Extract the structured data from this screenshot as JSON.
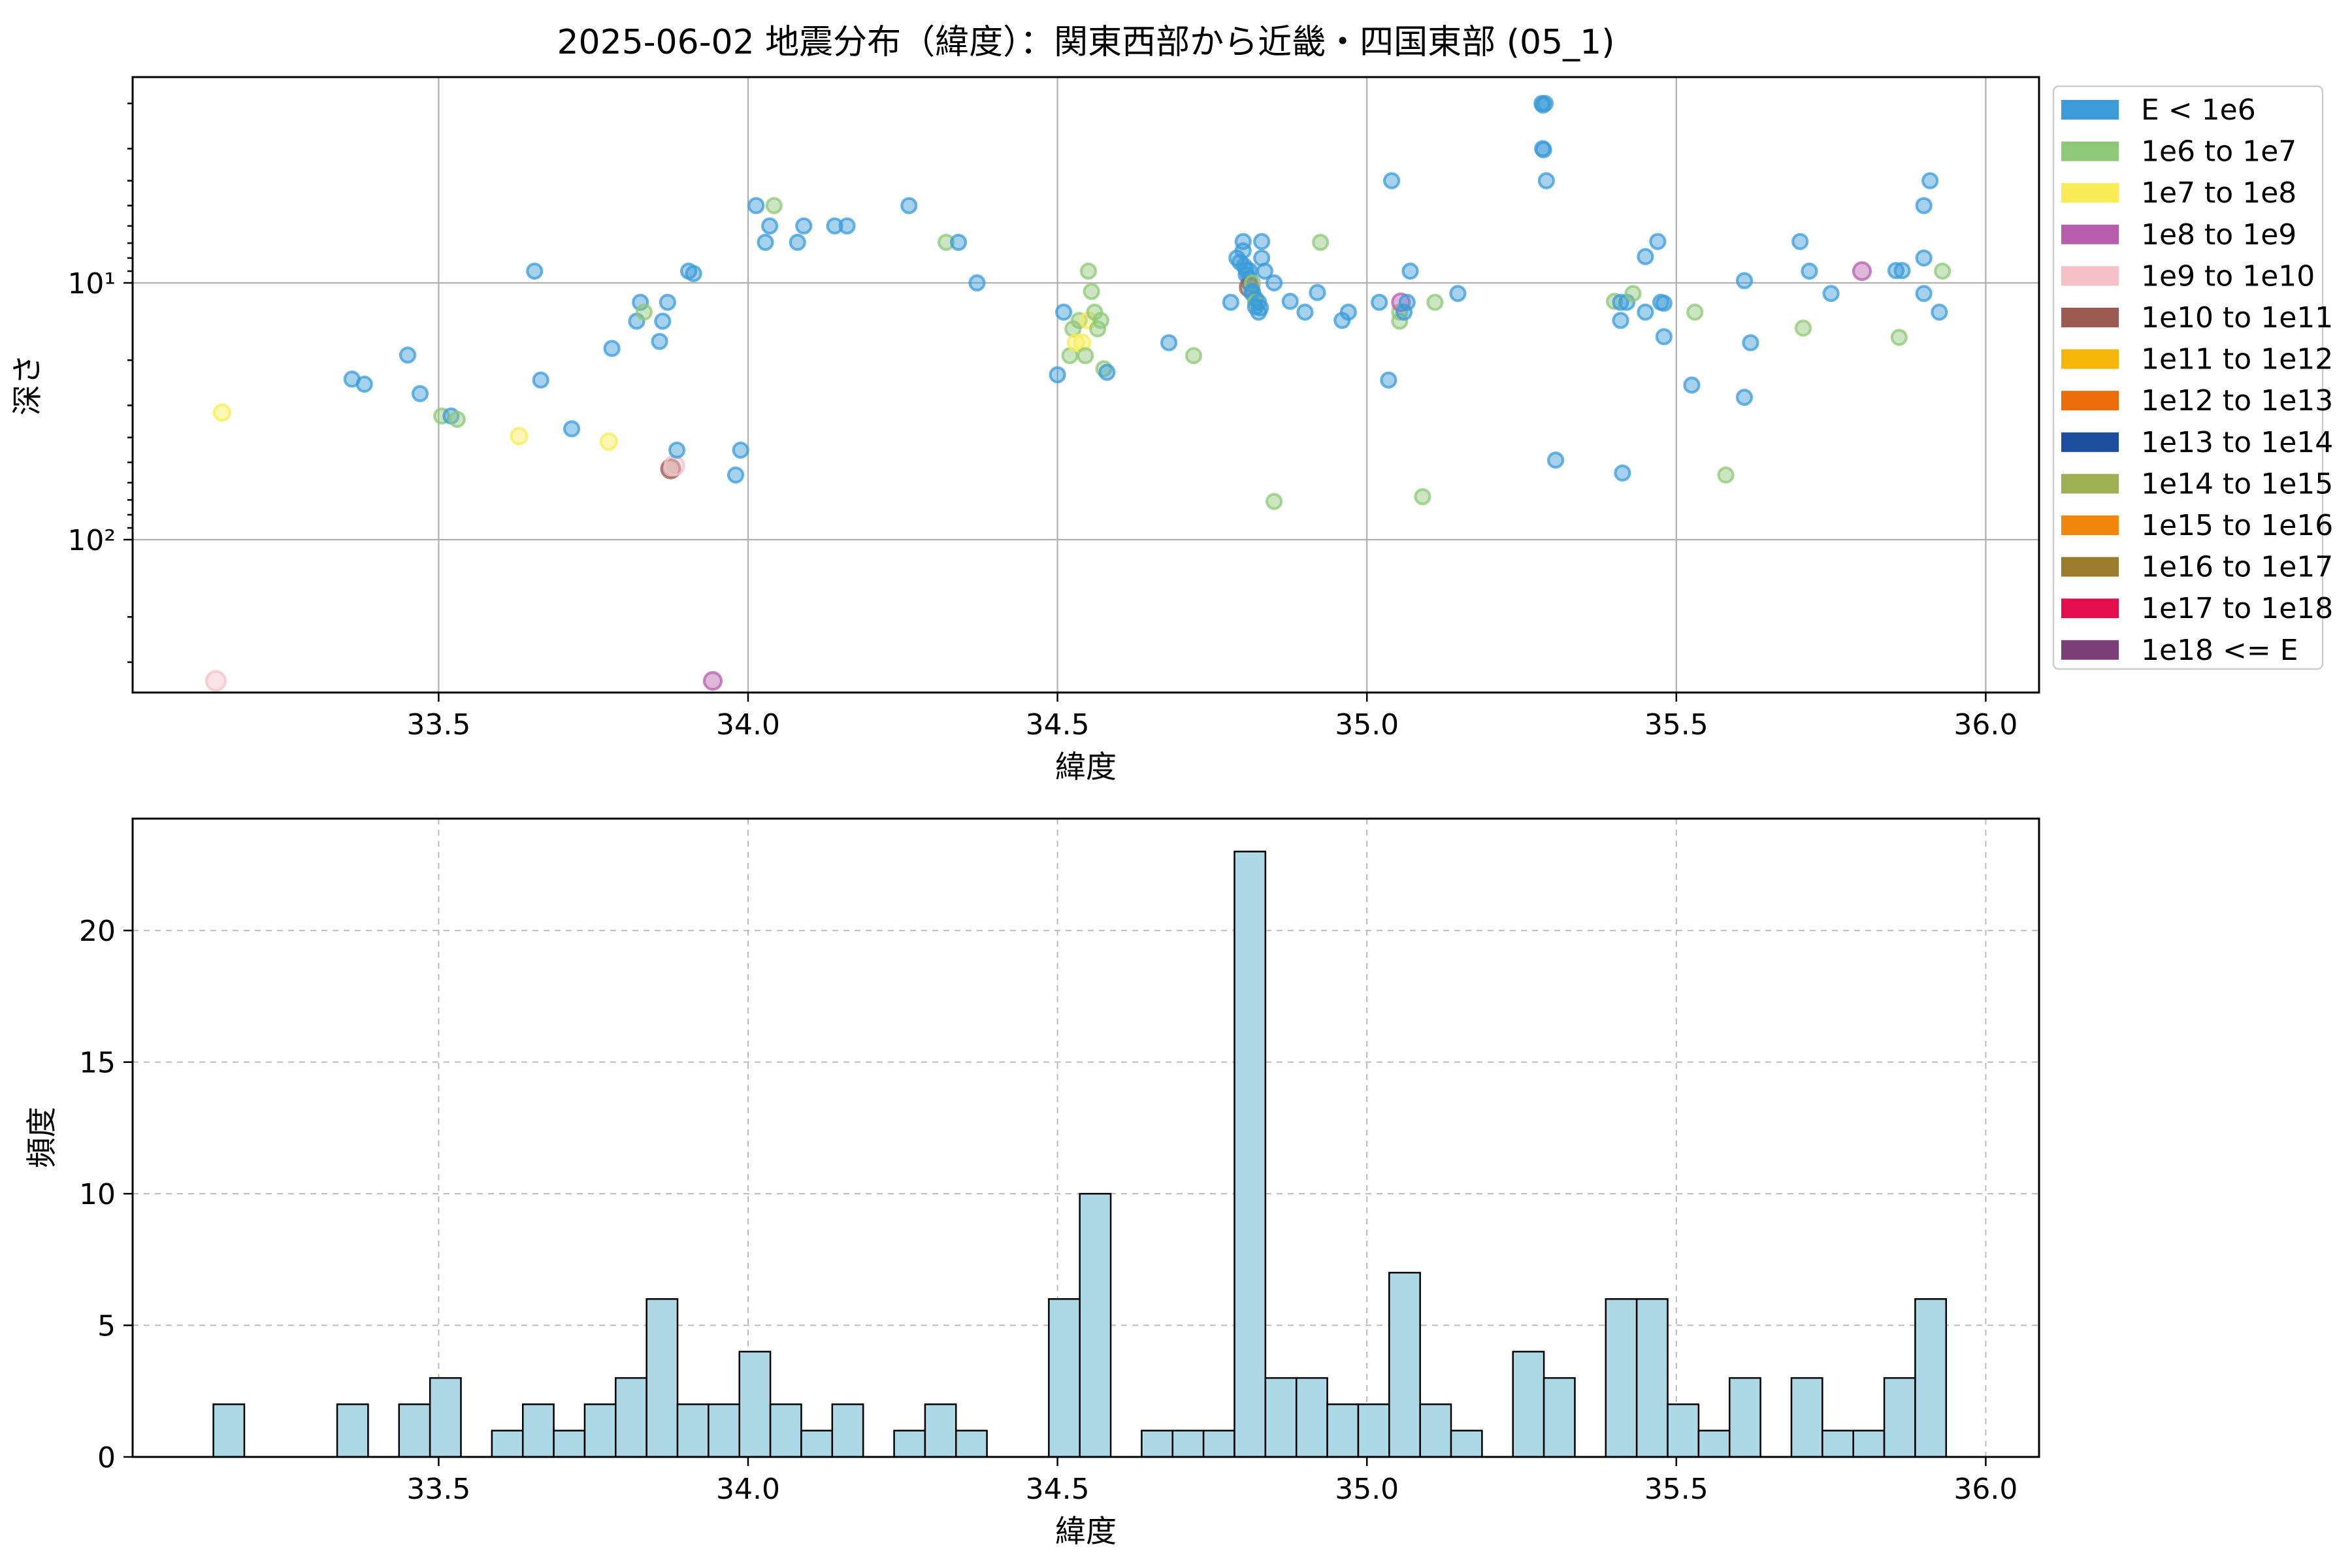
{
  "title": "2025-06-02 地震分布（緯度）：関東西部から近畿・四国東部 (05_1)",
  "legend": {
    "entries": [
      {
        "label": "E < 1e6",
        "color": "#3B9CD9"
      },
      {
        "label": "1e6 to 1e7",
        "color": "#8FC878"
      },
      {
        "label": "1e7 to 1e8",
        "color": "#F8ED56"
      },
      {
        "label": "1e8 to 1e9",
        "color": "#B75FAC"
      },
      {
        "label": "1e9 to 1e10",
        "color": "#F4C2C6"
      },
      {
        "label": "1e10 to 1e11",
        "color": "#9C5B52"
      },
      {
        "label": "1e11 to 1e12",
        "color": "#F4B609"
      },
      {
        "label": "1e12 to 1e13",
        "color": "#EA6D0A"
      },
      {
        "label": "1e13 to 1e14",
        "color": "#1C4E9D"
      },
      {
        "label": "1e14 to 1e15",
        "color": "#9FB054"
      },
      {
        "label": "1e15 to 1e16",
        "color": "#F0870A"
      },
      {
        "label": "1e16 to 1e17",
        "color": "#9B7C2C"
      },
      {
        "label": "1e17 to 1e18",
        "color": "#E20D4B"
      },
      {
        "label": "1e18 <= E",
        "color": "#7C3F77"
      }
    ]
  },
  "chart_data": [
    {
      "type": "scatter",
      "xlabel": "緯度",
      "ylabel": "深さ",
      "x_ticks": [
        "33.5",
        "34.0",
        "34.5",
        "35.0",
        "35.5",
        "36.0"
      ],
      "x_tick_values": [
        33.5,
        34.0,
        34.5,
        35.0,
        35.5,
        36.0
      ],
      "y_ticks": [
        {
          "label": "10¹",
          "value": 10
        },
        {
          "label": "10²",
          "value": 100
        }
      ],
      "y_scale": "log-inverted-depth",
      "xlim": [
        33.005,
        36.086
      ],
      "depth_lim": [
        1.58,
        394
      ],
      "grid": true,
      "marker_alpha": 0.6,
      "point_format": "[latitude, depth_km, energy_class_index]",
      "points": [
        [
          33.15,
          32,
          2
        ],
        [
          33.14,
          355,
          4
        ],
        [
          33.36,
          23.7,
          0
        ],
        [
          33.38,
          24.8,
          0
        ],
        [
          33.45,
          19.1,
          0
        ],
        [
          33.47,
          27,
          0
        ],
        [
          33.505,
          33,
          1
        ],
        [
          33.52,
          33,
          0
        ],
        [
          33.53,
          34,
          1
        ],
        [
          33.63,
          39.5,
          2
        ],
        [
          33.655,
          9.0,
          0
        ],
        [
          33.665,
          23.9,
          0
        ],
        [
          33.715,
          37,
          0
        ],
        [
          33.775,
          41.5,
          2
        ],
        [
          33.78,
          18,
          0
        ],
        [
          33.82,
          14.1,
          0
        ],
        [
          33.826,
          11.9,
          0
        ],
        [
          33.832,
          13,
          1
        ],
        [
          33.857,
          16.9,
          0
        ],
        [
          33.862,
          14.1,
          0
        ],
        [
          33.87,
          11.9,
          0
        ],
        [
          33.875,
          53,
          5
        ],
        [
          33.881,
          51.5,
          4
        ],
        [
          33.885,
          44.8,
          0
        ],
        [
          33.904,
          9.0,
          0
        ],
        [
          33.912,
          9.2,
          0
        ],
        [
          33.943,
          355,
          3
        ],
        [
          33.98,
          56,
          0
        ],
        [
          33.988,
          44.8,
          0
        ],
        [
          34.013,
          5.0,
          0
        ],
        [
          34.028,
          6.95,
          0
        ],
        [
          34.035,
          6.0,
          0
        ],
        [
          34.042,
          5.0,
          1
        ],
        [
          34.08,
          6.95,
          0
        ],
        [
          34.09,
          6.0,
          0
        ],
        [
          34.14,
          6.0,
          0
        ],
        [
          34.16,
          6.0,
          0
        ],
        [
          34.26,
          5.0,
          0
        ],
        [
          34.32,
          6.95,
          1
        ],
        [
          34.34,
          6.95,
          0
        ],
        [
          34.37,
          10.0,
          0
        ],
        [
          34.5,
          22.8,
          0
        ],
        [
          34.51,
          13.0,
          0
        ],
        [
          34.52,
          19.2,
          1
        ],
        [
          34.525,
          15.1,
          1
        ],
        [
          34.53,
          17.1,
          2
        ],
        [
          34.535,
          14.0,
          1
        ],
        [
          34.54,
          17.1,
          2
        ],
        [
          34.545,
          19.2,
          1
        ],
        [
          34.55,
          14.0,
          2
        ],
        [
          34.55,
          9.0,
          1
        ],
        [
          34.555,
          10.8,
          1
        ],
        [
          34.56,
          13.0,
          1
        ],
        [
          34.565,
          15.1,
          1
        ],
        [
          34.57,
          14.0,
          1
        ],
        [
          34.575,
          21.6,
          1
        ],
        [
          34.58,
          22.3,
          0
        ],
        [
          34.68,
          17.1,
          0
        ],
        [
          34.72,
          19.2,
          1
        ],
        [
          34.78,
          11.9,
          0
        ],
        [
          34.79,
          8.0,
          0
        ],
        [
          34.795,
          8.3,
          0
        ],
        [
          34.8,
          6.9,
          0
        ],
        [
          34.8,
          7.5,
          0
        ],
        [
          34.802,
          8.6,
          0
        ],
        [
          34.805,
          8.9,
          0
        ],
        [
          34.805,
          9.3,
          0
        ],
        [
          34.81,
          8.95,
          0
        ],
        [
          34.81,
          9.6,
          0
        ],
        [
          34.81,
          10.0,
          0
        ],
        [
          34.81,
          10.4,
          5
        ],
        [
          34.815,
          10.0,
          1
        ],
        [
          34.815,
          10.8,
          0
        ],
        [
          34.815,
          11.0,
          0
        ],
        [
          34.82,
          11.5,
          0
        ],
        [
          34.82,
          11.9,
          1
        ],
        [
          34.82,
          12.4,
          0
        ],
        [
          34.825,
          11.9,
          0
        ],
        [
          34.825,
          13.0,
          0
        ],
        [
          34.828,
          12.5,
          0
        ],
        [
          34.83,
          8.0,
          0
        ],
        [
          34.83,
          6.9,
          0
        ],
        [
          34.835,
          9.0,
          0
        ],
        [
          34.85,
          10.0,
          0
        ],
        [
          34.876,
          11.8,
          0
        ],
        [
          34.85,
          71,
          1
        ],
        [
          34.9,
          13.0,
          0
        ],
        [
          34.92,
          10.9,
          0
        ],
        [
          34.925,
          6.95,
          1
        ],
        [
          34.96,
          14.0,
          0
        ],
        [
          34.97,
          13.0,
          0
        ],
        [
          35.02,
          11.9,
          0
        ],
        [
          35.035,
          23.9,
          0
        ],
        [
          35.04,
          4.0,
          0
        ],
        [
          35.053,
          13.0,
          1
        ],
        [
          35.053,
          14.1,
          1
        ],
        [
          35.055,
          11.9,
          3
        ],
        [
          35.06,
          13.0,
          0
        ],
        [
          35.065,
          11.9,
          0
        ],
        [
          35.07,
          9.0,
          0
        ],
        [
          35.11,
          11.9,
          1
        ],
        [
          35.09,
          68,
          1
        ],
        [
          35.147,
          11.0,
          0
        ],
        [
          35.283,
          2.0,
          0
        ],
        [
          35.2845,
          2.03,
          0
        ],
        [
          35.284,
          3.0,
          0
        ],
        [
          35.2855,
          3.03,
          0
        ],
        [
          35.288,
          2.0,
          0
        ],
        [
          35.29,
          4.0,
          0
        ],
        [
          35.305,
          49,
          0
        ],
        [
          35.4,
          11.8,
          1
        ],
        [
          35.41,
          11.9,
          0
        ],
        [
          35.42,
          11.9,
          0
        ],
        [
          35.43,
          11.0,
          1
        ],
        [
          35.41,
          14.0,
          0
        ],
        [
          35.413,
          55,
          0
        ],
        [
          35.45,
          13.0,
          0
        ],
        [
          35.475,
          11.9,
          0
        ],
        [
          35.48,
          12.0,
          0
        ],
        [
          35.47,
          6.9,
          0
        ],
        [
          35.45,
          7.9,
          0
        ],
        [
          35.48,
          16.2,
          0
        ],
        [
          35.53,
          13.0,
          1
        ],
        [
          35.525,
          25.0,
          0
        ],
        [
          35.58,
          56,
          1
        ],
        [
          35.61,
          9.8,
          0
        ],
        [
          35.62,
          17.1,
          0
        ],
        [
          35.61,
          27.9,
          0
        ],
        [
          35.7,
          6.9,
          0
        ],
        [
          35.715,
          9.0,
          0
        ],
        [
          35.705,
          15.0,
          1
        ],
        [
          35.75,
          11.0,
          0
        ],
        [
          35.8,
          9.0,
          3
        ],
        [
          35.855,
          8.95,
          0
        ],
        [
          35.865,
          8.95,
          0
        ],
        [
          35.86,
          16.3,
          1
        ],
        [
          35.91,
          4.0,
          0
        ],
        [
          35.9,
          5.0,
          0
        ],
        [
          35.9,
          8.0,
          0
        ],
        [
          35.9,
          11.0,
          0
        ],
        [
          35.93,
          9.0,
          1
        ],
        [
          35.925,
          13,
          0
        ]
      ]
    },
    {
      "type": "bar",
      "xlabel": "緯度",
      "ylabel": "頻度",
      "x_ticks": [
        "33.5",
        "34.0",
        "34.5",
        "35.0",
        "35.5",
        "36.0"
      ],
      "x_tick_values": [
        33.5,
        34.0,
        34.5,
        35.0,
        35.5,
        36.0
      ],
      "y_ticks": [
        0,
        5,
        10,
        15,
        20
      ],
      "ylim": [
        0,
        24.25
      ],
      "xlim": [
        33.005,
        36.086
      ],
      "grid": "dashed",
      "bin_start": 33.136,
      "bin_width": 0.05,
      "bar_color": "#ADD8E6",
      "bar_edge_color": "#000000",
      "counts": [
        2,
        0,
        0,
        0,
        2,
        0,
        2,
        3,
        0,
        1,
        2,
        1,
        2,
        3,
        6,
        2,
        2,
        4,
        2,
        1,
        2,
        0,
        1,
        2,
        1,
        0,
        0,
        6,
        10,
        0,
        1,
        1,
        1,
        23,
        3,
        3,
        2,
        2,
        7,
        2,
        1,
        0,
        4,
        3,
        0,
        6,
        6,
        2,
        1,
        3,
        0,
        3,
        1,
        1,
        3,
        6
      ]
    }
  ]
}
